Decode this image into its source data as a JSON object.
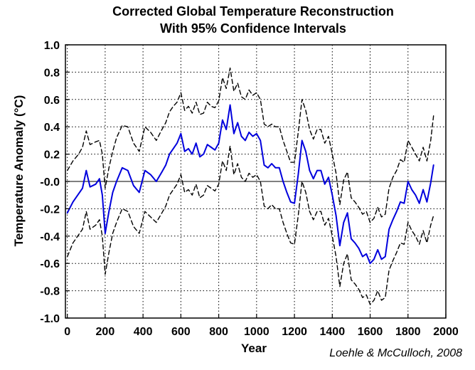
{
  "chart_data": {
    "type": "line",
    "title": "Corrected Global Temperature Reconstruction",
    "subtitle": "With 95% Confidence Intervals",
    "xlabel": "Year",
    "ylabel": "Temperature Anomaly (°C)",
    "xlim": [
      -10,
      2000
    ],
    "ylim": [
      -1.0,
      1.0
    ],
    "x_ticks": [
      0,
      200,
      400,
      600,
      800,
      1000,
      1200,
      1400,
      1600,
      1800,
      2000
    ],
    "x_tick_labels": [
      "0",
      "200",
      "400",
      "600",
      "800",
      "1000",
      "1200",
      "1400",
      "1600",
      "1800",
      "2000"
    ],
    "y_ticks": [
      1.0,
      0.8,
      0.6,
      0.4,
      0.2,
      0.0,
      -0.2,
      -0.4,
      -0.6,
      -0.8,
      -1.0
    ],
    "y_tick_labels": [
      "1.0",
      "0.8",
      "0.6",
      "0.4",
      "0.2",
      "-0.0",
      "-0.2",
      "-0.4",
      "-0.6",
      "-0.8",
      "-1.0"
    ],
    "grid": true,
    "zero_line": 0.0,
    "annotation": "Loehle & McCulloch, 2008",
    "series": [
      {
        "role": "reconstruction",
        "color": "#0000dd",
        "style": "solid",
        "x": [
          0,
          30,
          60,
          80,
          100,
          120,
          150,
          170,
          185,
          200,
          220,
          240,
          260,
          290,
          320,
          350,
          380,
          410,
          440,
          470,
          500,
          520,
          540,
          560,
          580,
          600,
          620,
          640,
          660,
          680,
          700,
          720,
          740,
          760,
          780,
          800,
          820,
          840,
          860,
          880,
          900,
          920,
          940,
          960,
          980,
          1000,
          1020,
          1040,
          1060,
          1080,
          1100,
          1120,
          1140,
          1160,
          1180,
          1200,
          1220,
          1240,
          1260,
          1280,
          1300,
          1320,
          1340,
          1360,
          1380,
          1400,
          1420,
          1440,
          1460,
          1480,
          1500,
          1520,
          1540,
          1560,
          1580,
          1600,
          1620,
          1640,
          1660,
          1680,
          1700,
          1720,
          1740,
          1760,
          1780,
          1800,
          1820,
          1840,
          1860,
          1880,
          1900,
          1920,
          1935
        ],
        "y": [
          -0.23,
          -0.15,
          -0.09,
          -0.05,
          0.08,
          -0.04,
          -0.02,
          0.02,
          -0.1,
          -0.38,
          -0.22,
          -0.08,
          0.0,
          0.1,
          0.08,
          -0.03,
          -0.08,
          0.08,
          0.05,
          0.0,
          0.07,
          0.12,
          0.2,
          0.24,
          0.28,
          0.35,
          0.22,
          0.24,
          0.2,
          0.28,
          0.18,
          0.2,
          0.27,
          0.25,
          0.23,
          0.28,
          0.45,
          0.38,
          0.56,
          0.35,
          0.43,
          0.33,
          0.3,
          0.36,
          0.33,
          0.35,
          0.3,
          0.12,
          0.1,
          0.13,
          0.1,
          0.1,
          0.0,
          -0.08,
          -0.15,
          -0.16,
          0.05,
          0.3,
          0.22,
          0.08,
          0.02,
          0.08,
          0.08,
          -0.02,
          0.03,
          -0.1,
          -0.25,
          -0.47,
          -0.3,
          -0.23,
          -0.42,
          -0.45,
          -0.49,
          -0.55,
          -0.53,
          -0.6,
          -0.57,
          -0.5,
          -0.57,
          -0.55,
          -0.35,
          -0.28,
          -0.22,
          -0.15,
          -0.16,
          0.0,
          -0.06,
          -0.1,
          -0.16,
          -0.06,
          -0.15,
          -0.01,
          0.12
        ]
      },
      {
        "role": "upper-95",
        "color": "#000000",
        "style": "dashed",
        "x": [
          0,
          30,
          60,
          80,
          100,
          120,
          150,
          170,
          185,
          200,
          220,
          240,
          260,
          290,
          320,
          350,
          380,
          410,
          440,
          470,
          500,
          520,
          540,
          560,
          580,
          600,
          620,
          640,
          660,
          680,
          700,
          720,
          740,
          760,
          780,
          800,
          820,
          840,
          860,
          880,
          900,
          920,
          940,
          960,
          980,
          1000,
          1020,
          1040,
          1060,
          1080,
          1100,
          1120,
          1140,
          1160,
          1180,
          1200,
          1220,
          1240,
          1260,
          1280,
          1300,
          1320,
          1340,
          1360,
          1380,
          1400,
          1420,
          1440,
          1460,
          1480,
          1500,
          1520,
          1540,
          1560,
          1580,
          1600,
          1620,
          1640,
          1660,
          1680,
          1700,
          1720,
          1740,
          1760,
          1780,
          1800,
          1820,
          1840,
          1860,
          1880,
          1900,
          1920,
          1935
        ],
        "y": [
          0.08,
          0.15,
          0.2,
          0.25,
          0.37,
          0.27,
          0.29,
          0.3,
          0.2,
          -0.05,
          0.1,
          0.22,
          0.32,
          0.41,
          0.4,
          0.28,
          0.22,
          0.4,
          0.36,
          0.3,
          0.38,
          0.43,
          0.51,
          0.55,
          0.58,
          0.65,
          0.52,
          0.55,
          0.5,
          0.58,
          0.49,
          0.5,
          0.58,
          0.55,
          0.54,
          0.59,
          0.76,
          0.68,
          0.83,
          0.66,
          0.72,
          0.62,
          0.6,
          0.67,
          0.63,
          0.65,
          0.6,
          0.42,
          0.4,
          0.42,
          0.4,
          0.4,
          0.3,
          0.22,
          0.14,
          0.14,
          0.36,
          0.6,
          0.52,
          0.38,
          0.31,
          0.38,
          0.38,
          0.28,
          0.33,
          0.2,
          0.06,
          -0.17,
          0.01,
          0.07,
          -0.12,
          -0.15,
          -0.19,
          -0.24,
          -0.22,
          -0.3,
          -0.27,
          -0.19,
          -0.26,
          -0.24,
          -0.05,
          0.03,
          0.08,
          0.16,
          0.14,
          0.3,
          0.25,
          0.2,
          0.15,
          0.25,
          0.15,
          0.3,
          0.48
        ]
      },
      {
        "role": "lower-95",
        "color": "#000000",
        "style": "dashed",
        "x": [
          0,
          30,
          60,
          80,
          100,
          120,
          150,
          170,
          185,
          200,
          220,
          240,
          260,
          290,
          320,
          350,
          380,
          410,
          440,
          470,
          500,
          520,
          540,
          560,
          580,
          600,
          620,
          640,
          660,
          680,
          700,
          720,
          740,
          760,
          780,
          800,
          820,
          840,
          860,
          880,
          900,
          920,
          940,
          960,
          980,
          1000,
          1020,
          1040,
          1060,
          1080,
          1100,
          1120,
          1140,
          1160,
          1180,
          1200,
          1220,
          1240,
          1260,
          1280,
          1300,
          1320,
          1340,
          1360,
          1380,
          1400,
          1420,
          1440,
          1460,
          1480,
          1500,
          1520,
          1540,
          1560,
          1580,
          1600,
          1620,
          1640,
          1660,
          1680,
          1700,
          1720,
          1740,
          1760,
          1780,
          1800,
          1820,
          1840,
          1860,
          1880,
          1900,
          1920,
          1935
        ],
        "y": [
          -0.55,
          -0.45,
          -0.39,
          -0.35,
          -0.22,
          -0.35,
          -0.32,
          -0.28,
          -0.4,
          -0.68,
          -0.52,
          -0.38,
          -0.3,
          -0.2,
          -0.22,
          -0.33,
          -0.38,
          -0.22,
          -0.26,
          -0.3,
          -0.23,
          -0.18,
          -0.1,
          -0.06,
          -0.02,
          0.05,
          -0.08,
          -0.06,
          -0.1,
          -0.02,
          -0.12,
          -0.1,
          -0.03,
          -0.05,
          -0.07,
          -0.02,
          0.15,
          0.08,
          0.26,
          0.05,
          0.13,
          0.03,
          0.0,
          0.06,
          0.03,
          0.05,
          0.0,
          -0.18,
          -0.2,
          -0.17,
          -0.2,
          -0.2,
          -0.3,
          -0.38,
          -0.45,
          -0.46,
          -0.25,
          0.0,
          -0.08,
          -0.22,
          -0.28,
          -0.22,
          -0.22,
          -0.32,
          -0.27,
          -0.4,
          -0.55,
          -0.77,
          -0.6,
          -0.53,
          -0.72,
          -0.75,
          -0.79,
          -0.85,
          -0.83,
          -0.9,
          -0.87,
          -0.8,
          -0.87,
          -0.85,
          -0.65,
          -0.58,
          -0.52,
          -0.45,
          -0.46,
          -0.3,
          -0.36,
          -0.4,
          -0.46,
          -0.36,
          -0.45,
          -0.32,
          -0.25
        ]
      }
    ]
  }
}
